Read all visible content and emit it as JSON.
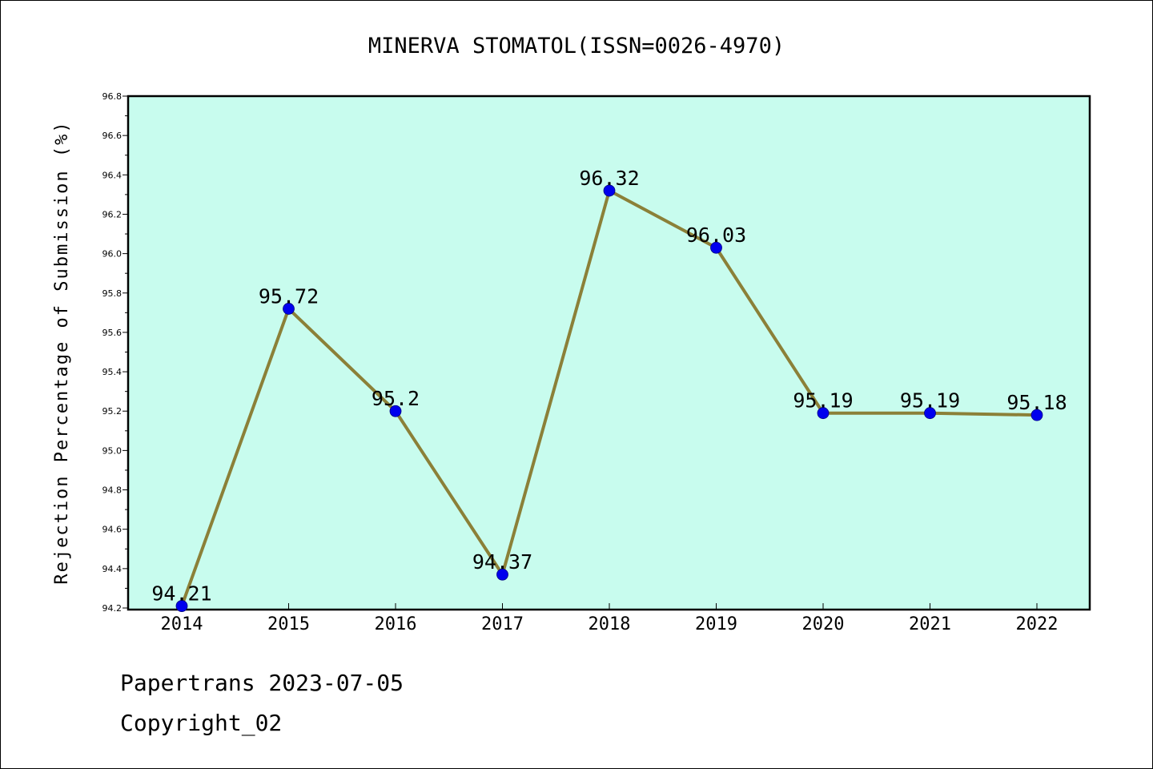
{
  "chart_data": {
    "type": "line",
    "title": "MINERVA STOMATOL(ISSN=0026-4970)",
    "xlabel": "",
    "ylabel": "Rejection Percentage of Submission (%)",
    "categories": [
      "2014",
      "2015",
      "2016",
      "2017",
      "2018",
      "2019",
      "2020",
      "2021",
      "2022"
    ],
    "values": [
      94.21,
      95.72,
      95.2,
      94.37,
      96.32,
      96.03,
      95.19,
      95.19,
      95.18
    ],
    "data_labels": [
      "94.21",
      "95.72",
      "95.2",
      "94.37",
      "96.32",
      "96.03",
      "95.19",
      "95.19",
      "95.18"
    ],
    "ylim": [
      94.2,
      96.8
    ],
    "yticks": [
      "94.2",
      "94.4",
      "94.6",
      "94.8",
      "95.0",
      "95.2",
      "95.4",
      "95.6",
      "95.8",
      "96.0",
      "96.2",
      "96.4",
      "96.6",
      "96.8"
    ],
    "grid": false,
    "legend": "none",
    "colors": {
      "plot_background": "#c8fcee",
      "line": "#8b8038",
      "marker": "#0000ee",
      "axes": "#000000"
    }
  },
  "footer": {
    "source": "Papertrans 2023-07-05",
    "copyright": "Copyright_02"
  }
}
